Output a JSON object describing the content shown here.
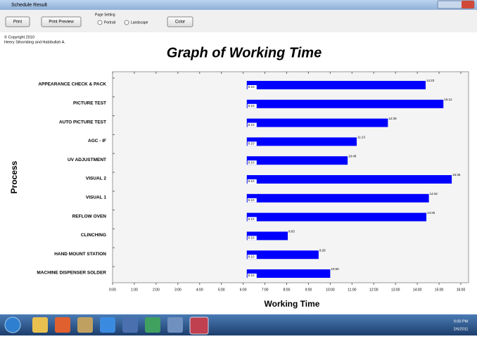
{
  "window": {
    "title": "Schedule Result"
  },
  "toolbar": {
    "print": "Print",
    "print_preview": "Print Preview",
    "page_setting": "Page Setting",
    "portrait": "Portrait",
    "landscape": "Landscape",
    "color": "Color"
  },
  "copyright": {
    "line1": "© Copyright 2010",
    "line2": "Heery Sihombing and Habibullah A."
  },
  "taskbar": {
    "time": "9:00 PM",
    "date": "2/6/2011"
  },
  "chart_data": {
    "type": "floating_bar",
    "title": "Graph of Working Time",
    "x_label": "Working Time",
    "y_label": "Process",
    "categories": [
      "APPEARANCE CHECK & PACK",
      "PICTURE TEST",
      "AUTO PICTURE TEST",
      "AGC - IF",
      "UV ADJUSTMENT",
      "VISUAL 2",
      "VISUAL 1",
      "REFLOW OVEN",
      "CLINCHING",
      "HAND MOUNT STATION",
      "MACHINE DISPENSER SOLDER"
    ],
    "start_values": [
      370,
      370,
      370,
      370,
      370,
      370,
      370,
      370,
      370,
      370,
      370
    ],
    "start_value_labels": [
      "6:10",
      "6:10",
      "6:10",
      "6:10",
      "6:10",
      "6:10",
      "6:10",
      "6:10",
      "6:10",
      "6:10",
      "6:10"
    ],
    "values": [
      863,
      912,
      759,
      673,
      648,
      935,
      872,
      865,
      483,
      568,
      600
    ],
    "value_labels": [
      "14:23",
      "15:12",
      "12:39",
      "11:13",
      "10:48",
      "15:35",
      "14:32",
      "14:25",
      "8:03",
      "9:28",
      "10:00"
    ],
    "color": "#0000ff",
    "xlim": [
      0,
      960
    ],
    "xticks": [
      {
        "value": 0,
        "label": "0:00"
      },
      {
        "value": 60,
        "label": "1:00"
      },
      {
        "value": 120,
        "label": "2:00"
      },
      {
        "value": 180,
        "label": "3:00"
      },
      {
        "value": 240,
        "label": "4:00"
      },
      {
        "value": 300,
        "label": "5:00"
      },
      {
        "value": 360,
        "label": "6:00"
      },
      {
        "value": 420,
        "label": "7:00"
      },
      {
        "value": 480,
        "label": "8:00"
      },
      {
        "value": 540,
        "label": "9:00"
      },
      {
        "value": 600,
        "label": "10:00"
      },
      {
        "value": 660,
        "label": "11:00"
      },
      {
        "value": 720,
        "label": "12:00"
      },
      {
        "value": 780,
        "label": "13:00"
      },
      {
        "value": 840,
        "label": "14:00"
      },
      {
        "value": 900,
        "label": "15:00"
      },
      {
        "value": 960,
        "label": "16:00"
      }
    ]
  }
}
